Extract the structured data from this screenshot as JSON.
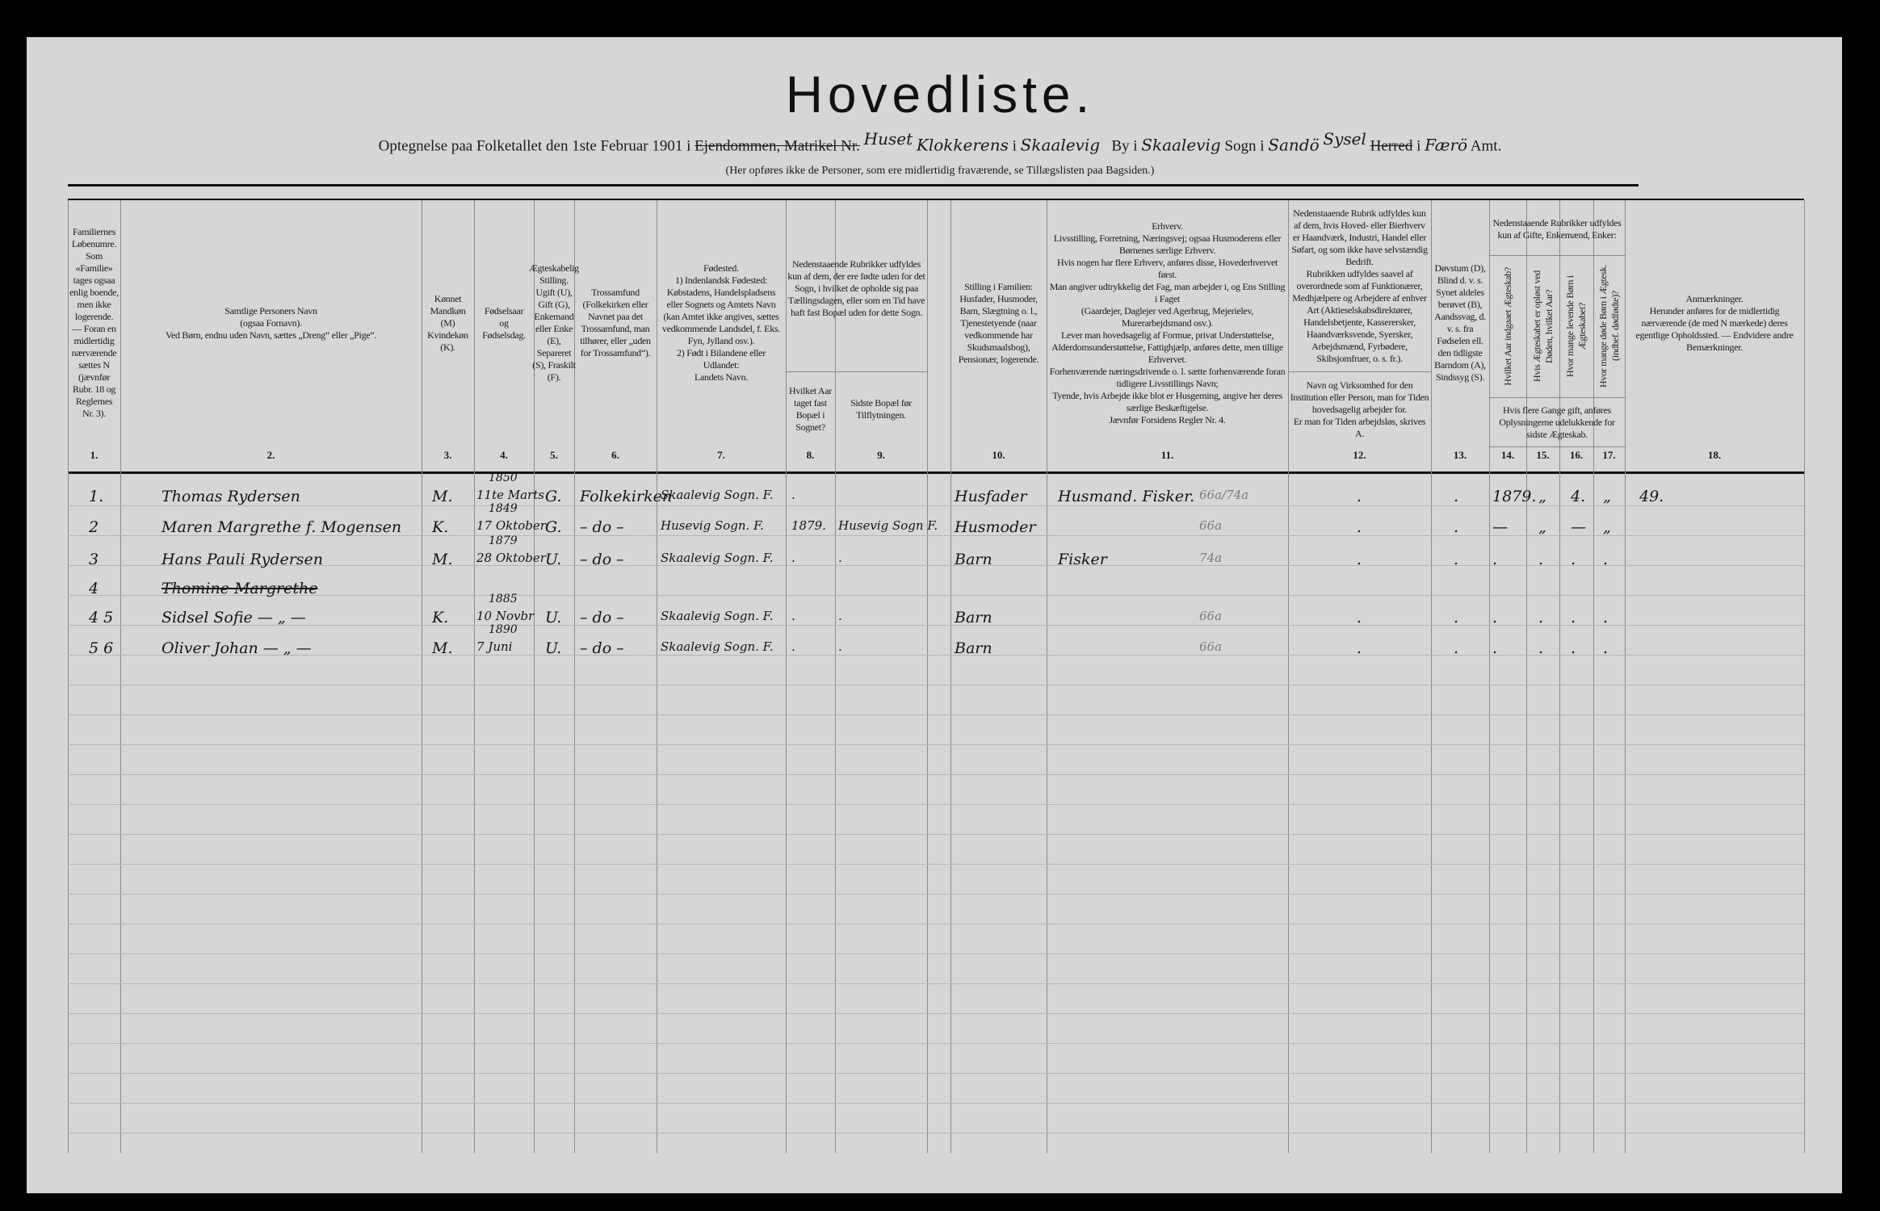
{
  "title": "Hovedliste.",
  "subtitle": {
    "prefix": "Optegnelse paa Folketallet den 1ste Februar 1901 i",
    "struck_property": "Ejendommen, Matrikel Nr.",
    "hw_above": "Huset",
    "hw_property": "Klokkerens",
    "sep1": "i",
    "hw_town": "Skaalevig",
    "by_label": "By i",
    "hw_parish": "Skaalevig",
    "sogn_label": "Sogn i",
    "hw_district": "Sandö",
    "hw_district_above": "Sysel",
    "struck_herred": "Herred",
    "sep2": "i",
    "hw_county": "Færö",
    "amt_label": "Amt."
  },
  "note": "(Her opføres ikke de Personer, som ere midlertidig fraværende, se Tillægslisten paa Bagsiden.)",
  "columns": [
    {
      "num": "1.",
      "header": "Familiernes Løbenumre.\nSom «Familie» tages ogsaa enlig boende, men ikke logerende. — Foran en midlertidig nærværende sættes N (jævnfør Rubr. 18 og Reglernes Nr. 3)."
    },
    {
      "num": "2.",
      "header": "Samtlige Personers Navn\n(ogsaa Fornavn).\nVed Børn, endnu uden Navn, sættes „Dreng“ eller „Pige“."
    },
    {
      "num": "3.",
      "header": "Kønnet\nMandkøn (M)\nKvindekøn (K)."
    },
    {
      "num": "4.",
      "header": "Fødselsaar\nog\nFødselsdag."
    },
    {
      "num": "5.",
      "header": "Ægteskabelig Stilling.\nUgift (U), Gift (G), Enkemand eller Enke (E), Separeret (S), Fraskilt (F)."
    },
    {
      "num": "6.",
      "header": "Trossamfund\n(Folkekirken eller Navnet paa det Trossamfund, man tilhører, eller „uden for Trossamfund“)."
    },
    {
      "num": "7.",
      "header": "Fødested.\n1) Indenlandsk Fødested:\nKøbstadens, Handelspladsens eller Sognets og Amtets Navn (kan Amtet ikke angives, sættes vedkommende Landsdel, f. Eks. Fyn, Jylland osv.).\n2) Født i Bilandene eller Udlandet:\nLandets Navn."
    },
    {
      "num": "8.",
      "header": "Hvilket Aar taget fast Bopæl i Sognet?"
    },
    {
      "num": "9.",
      "header": "Sidste Bopæl før Tilflytningen."
    },
    {
      "num": "10.",
      "header": "Stilling i Familien:\nHusfader, Husmoder, Barn, Slægtning o. l., Tjenestetyende (naar vedkommende har Skudsmaalsbog), Pensionær, logerende."
    },
    {
      "num": "11.",
      "header": "Erhverv.\nLivsstilling, Forretning, Næringsvej; ogsaa Husmoderens eller Børnenes særlige Erhverv.\nHvis nogen har flere Erhverv, anføres disse, Hovederhvervet først.\nMan angiver udtrykkelig det Fag, man arbejder i, og Ens Stilling i Faget\n(Gaardejer, Daglejer ved Agerbrug, Mejerielev, Murerarbejdsmand osv.).\nLever man hovedsagelig af Formue, privat Understøttelse, Alderdomsunderstøttelse, Fattighjælp, anføres dette, men tillige Erhvervet.\nForhenværende næringsdrivende o. l. sætte forhenværende foran tidligere Livsstillings Navn;\nTyende, hvis Arbejde ikke blot er Husgerning, angive her deres særlige Beskæftigelse.\nJævnfør Forsidens Regler Nr. 4."
    },
    {
      "num": "12.",
      "header": "Nedenstaaende Rubrik udfyldes kun af dem, hvis Hoved- eller Bierhverv er Haandværk, Industri, Handel eller Søfart, og som ikke have selvstændig Bedrift.\nRubrikken udfyldes saavel af overordnede som af Funktionærer, Medhjælpere og Arbejdere af enhver Art (Aktieselskabsdirektører, Handelsbetjente, Kasserersker, Haandværksvende, Syersker, Arbejdsmænd, Fyrbødere, Skibsjomfruer, o. s. fr.).",
      "sub": "Navn og Virksomhed for den Institution eller Person, man for Tiden hovedsagelig arbejder for.\nEr man for Tiden arbejdsløs, skrives A."
    },
    {
      "num": "13.",
      "header": "Døvstum (D),\nBlind d. v. s. Synet aldeles berøvet (B),\nAandssvag, d. v. s. fra Fødselen ell. den tidligste Barndom (A),\nSindssyg (S)."
    },
    {
      "num": "14.",
      "header": "Hvilket Aar indgaaet Ægteskab?"
    },
    {
      "num": "15.",
      "header": "Hvis Ægteskabet er opløst ved Døden, hvilket Aar?"
    },
    {
      "num": "16.",
      "header": "Hvor mange levende Børn i Ægteskabet?"
    },
    {
      "num": "17.",
      "header": "Hvor mange døde Børn i Ægtesk. (indbef. dødfødte)?"
    },
    {
      "num": "18.",
      "header": "Anmærkninger.\nHerunder anføres for de midlertidig nærværende (de med N mærkede) deres egentlige Opholdssted. — Endvidere andre Bemærkninger."
    }
  ],
  "group_8_9": "Nedenstaaende Rubrikker udfyldes kun af dem, der ere fødte uden for det Sogn, i hvilket de opholde sig paa Tællingsdagen, eller som en Tid have haft fast Bopæl uden for dette Sogn.",
  "group_14_17": "Nedenstaaende Rubrikker udfyldes kun af Gifte, Enkemænd, Enker:",
  "group_14_17_foot": "Hvis flere Gange gift, anføres Oplysningerne udelukkende for sidste Ægteskab.",
  "rows": [
    {
      "no": "1.",
      "name": "Thomas Rydersen",
      "sex": "M.",
      "year": "1850",
      "date": "11te Marts",
      "civil": "G.",
      "faith": "Folkekirken",
      "birthplace": "Skaalevig Sogn. F.",
      "c8": ".",
      "c9": "",
      "c10": "Husfader",
      "c11": "Husmand. Fisker.",
      "c11_pencil": "66a/74a",
      "c12": ".",
      "c13": ".",
      "c14": "1879.",
      "c15": "„",
      "c16": "4.",
      "c17": "„",
      "c18": "49."
    },
    {
      "no": "2",
      "name": "Maren Margrethe f. Mogensen",
      "sex": "K.",
      "year": "1849",
      "date": "17 Oktober",
      "civil": "G.",
      "faith": "– do –",
      "birthplace": "Husevig Sogn. F.",
      "c8": "1879.",
      "c9": "Husevig Sogn F.",
      "c10": "Husmoder",
      "c11": "",
      "c11_pencil": "66a",
      "c12": ".",
      "c13": ".",
      "c14": "—",
      "c15": "„",
      "c16": "—",
      "c17": "„",
      "c18": ""
    },
    {
      "no": "3",
      "name": "Hans Pauli Rydersen",
      "sex": "M.",
      "year": "1879",
      "date": "28 Oktober",
      "civil": "U.",
      "faith": "– do –",
      "birthplace": "Skaalevig Sogn. F.",
      "c8": ".",
      "c9": ".",
      "c10": "Barn",
      "c11": "Fisker",
      "c11_pencil": "74a",
      "c12": ".",
      "c13": ".",
      "c14": ".",
      "c15": ".",
      "c16": ".",
      "c17": ".",
      "c18": ""
    },
    {
      "no": "4",
      "name": "Thomine Margrethe",
      "struck": true,
      "sex": "",
      "year": "",
      "date": "",
      "civil": "",
      "faith": "",
      "birthplace": "",
      "c8": "",
      "c9": "",
      "c10": "",
      "c11": "",
      "c11_pencil": "",
      "c12": "",
      "c13": "",
      "c14": "",
      "c15": "",
      "c16": "",
      "c17": "",
      "c18": ""
    },
    {
      "no": "4 5",
      "name": "Sidsel Sofie — „ —",
      "sex": "K.",
      "year": "1885",
      "date": "10 Novbr",
      "civil": "U.",
      "faith": "– do –",
      "birthplace": "Skaalevig Sogn. F.",
      "c8": ".",
      "c9": ".",
      "c10": "Barn",
      "c11": "",
      "c11_pencil": "66a",
      "c12": ".",
      "c13": ".",
      "c14": ".",
      "c15": ".",
      "c16": ".",
      "c17": ".",
      "c18": ""
    },
    {
      "no": "5 6",
      "name": "Oliver Johan — „ —",
      "sex": "M.",
      "year": "1890",
      "date": "7 Juni",
      "civil": "U.",
      "faith": "– do –",
      "birthplace": "Skaalevig Sogn. F.",
      "c8": ".",
      "c9": ".",
      "c10": "Barn",
      "c11": "",
      "c11_pencil": "66a",
      "c12": ".",
      "c13": ".",
      "c14": ".",
      "c15": ".",
      "c16": ".",
      "c17": ".",
      "c18": ""
    }
  ]
}
